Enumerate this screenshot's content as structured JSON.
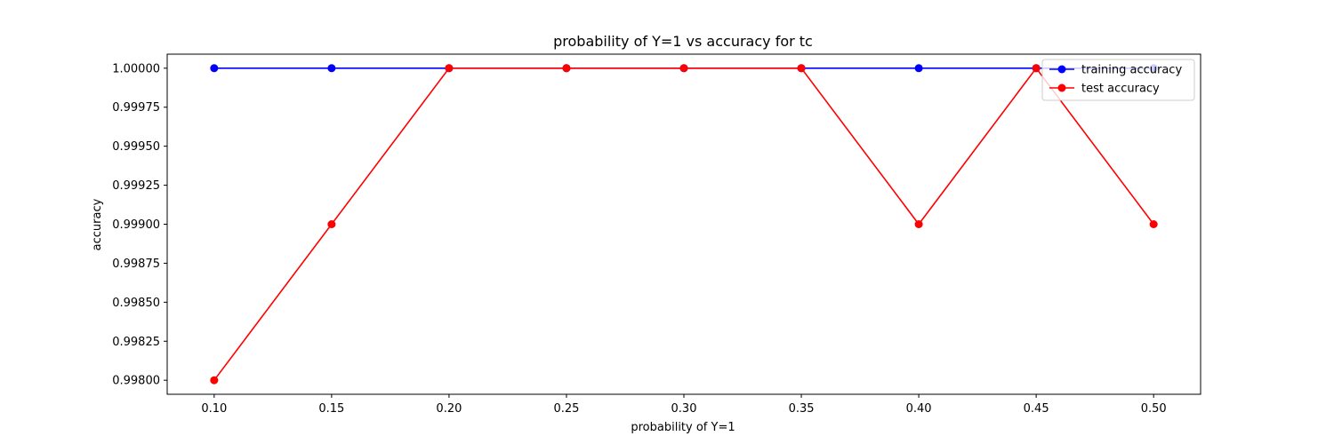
{
  "chart_data": {
    "type": "line",
    "title": "probability of Y=1 vs accuracy for tc",
    "xlabel": "probability of Y=1",
    "ylabel": "accuracy",
    "x": [
      0.1,
      0.15,
      0.2,
      0.25,
      0.3,
      0.35,
      0.4,
      0.45,
      0.5
    ],
    "x_tick_labels": [
      "0.10",
      "0.15",
      "0.20",
      "0.25",
      "0.30",
      "0.35",
      "0.40",
      "0.45",
      "0.50"
    ],
    "y_tick_values": [
      0.998,
      0.99825,
      0.9985,
      0.99875,
      0.999,
      0.99925,
      0.9995,
      0.99975,
      1.0
    ],
    "y_tick_labels": [
      "0.99800",
      "0.99825",
      "0.99850",
      "0.99875",
      "0.99900",
      "0.99925",
      "0.99950",
      "0.99975",
      "1.00000"
    ],
    "xlim": [
      0.08,
      0.52
    ],
    "ylim": [
      0.99791,
      1.00009
    ],
    "grid": false,
    "legend_position": "upper right",
    "series": [
      {
        "name": "training accuracy",
        "color": "#0000ff",
        "marker": "circle",
        "values": [
          1.0,
          1.0,
          1.0,
          1.0,
          1.0,
          1.0,
          1.0,
          1.0,
          1.0
        ]
      },
      {
        "name": "test accuracy",
        "color": "#ff0000",
        "marker": "circle",
        "values": [
          0.998,
          0.999,
          1.0,
          1.0,
          1.0,
          1.0,
          0.999,
          1.0,
          0.999
        ]
      }
    ]
  }
}
